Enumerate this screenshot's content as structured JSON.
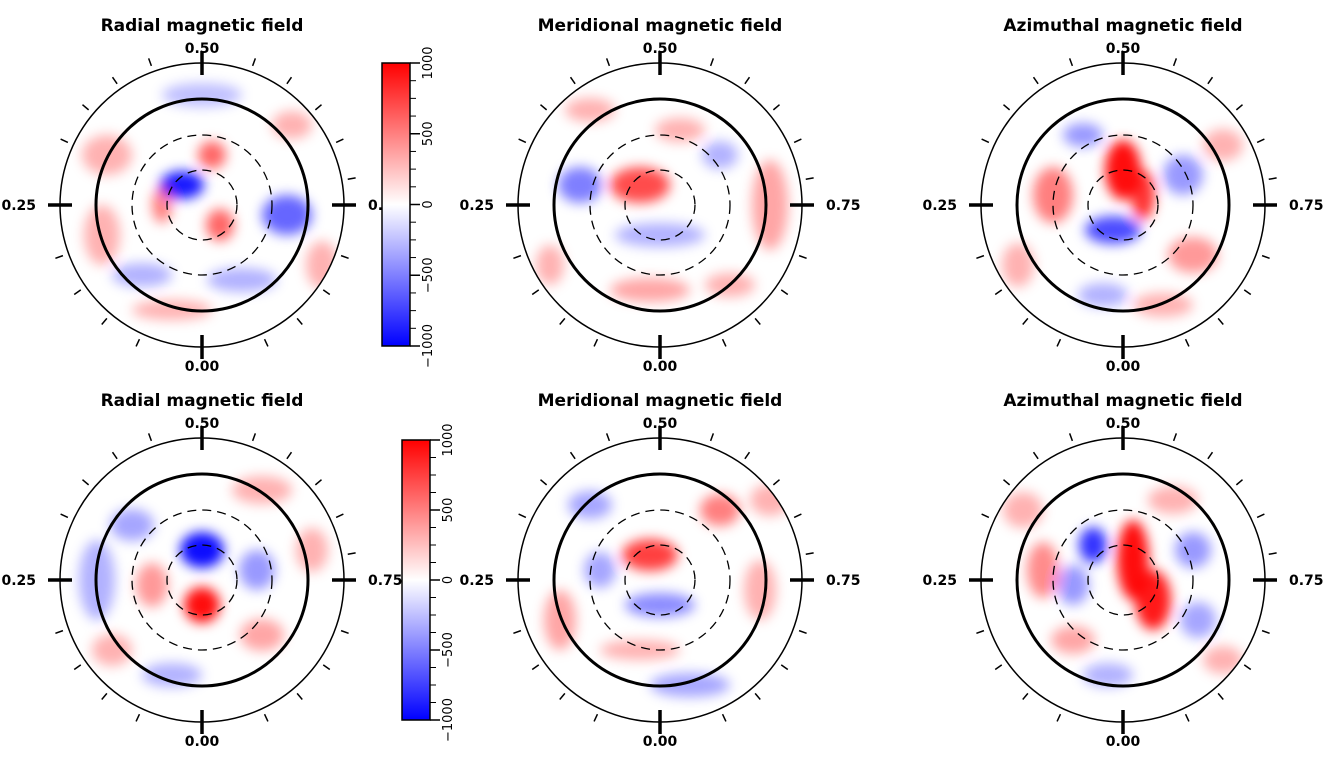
{
  "chart_data": [
    {
      "type": "heatmap",
      "title": "Radial magnetic field",
      "phase_labels": {
        "top": "0.50",
        "left": "0.25",
        "right": "0.75",
        "bottom": "0.00"
      },
      "value_range": [
        -1000,
        1000
      ]
    },
    {
      "type": "heatmap",
      "title": "Meridional magnetic field",
      "phase_labels": {
        "top": "0.50",
        "left": "0.25",
        "right": "0.75",
        "bottom": "0.00"
      },
      "value_range": [
        -1000,
        1000
      ]
    },
    {
      "type": "heatmap",
      "title": "Azimuthal magnetic field",
      "phase_labels": {
        "top": "0.50",
        "left": "0.25",
        "right": "0.75",
        "bottom": "0.00"
      },
      "value_range": [
        -1000,
        1000
      ]
    },
    {
      "type": "heatmap",
      "title": "Radial magnetic field",
      "phase_labels": {
        "top": "0.50",
        "left": "0.25",
        "right": "0.75",
        "bottom": "0.00"
      },
      "value_range": [
        -1000,
        1000
      ]
    },
    {
      "type": "heatmap",
      "title": "Meridional magnetic field",
      "phase_labels": {
        "top": "0.50",
        "left": "0.25",
        "right": "0.75",
        "bottom": "0.00"
      },
      "value_range": [
        -1000,
        1000
      ]
    },
    {
      "type": "heatmap",
      "title": "Azimuthal magnetic field",
      "phase_labels": {
        "top": "0.50",
        "left": "0.25",
        "right": "0.75",
        "bottom": "0.00"
      },
      "value_range": [
        -1000,
        1000
      ]
    }
  ],
  "colorbars": [
    {
      "ticks": [
        "1000",
        "500",
        "0",
        "−500",
        "−1000"
      ],
      "min": -1000,
      "max": 1000
    },
    {
      "ticks": [
        "1000",
        "500",
        "0",
        "−500",
        "−1000"
      ],
      "min": -1000,
      "max": 1000
    }
  ],
  "colors": {
    "positive": "#ff0000",
    "negative": "#0000ff",
    "zero": "#ffffff"
  }
}
